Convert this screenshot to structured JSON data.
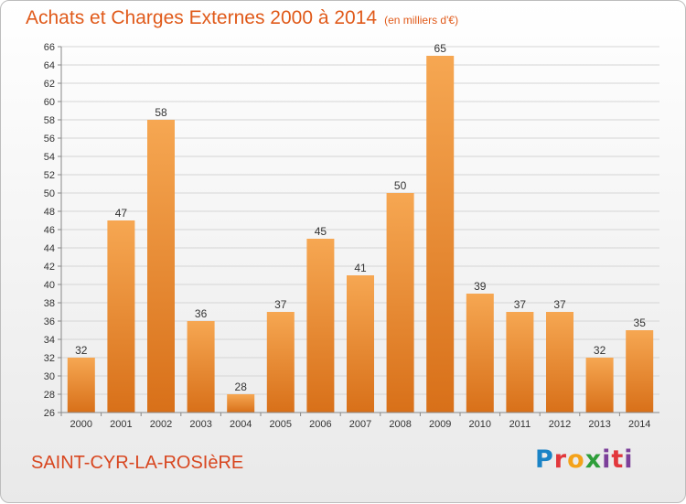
{
  "title": "Achats et Charges Externes 2000 à 2014",
  "subtitle": "(en milliers d'€)",
  "commune": "SAINT-CYR-LA-ROSIèRE",
  "logo": "Proxiti",
  "colors": {
    "bar_light": "#f6a752",
    "bar_dark": "#d87019",
    "title": "#e05a1a",
    "grid": "#d5d5d5"
  },
  "chart_data": {
    "type": "bar",
    "categories": [
      "2000",
      "2001",
      "2002",
      "2003",
      "2004",
      "2005",
      "2006",
      "2007",
      "2008",
      "2009",
      "2010",
      "2011",
      "2012",
      "2013",
      "2014"
    ],
    "values": [
      32,
      47,
      58,
      36,
      28,
      37,
      45,
      41,
      50,
      65,
      39,
      37,
      37,
      32,
      35
    ],
    "ylim": [
      26,
      66
    ],
    "yticks": [
      26,
      28,
      30,
      32,
      34,
      36,
      38,
      40,
      42,
      44,
      46,
      48,
      50,
      52,
      54,
      56,
      58,
      60,
      62,
      64,
      66
    ],
    "grid": true,
    "xlabel": "",
    "ylabel": ""
  }
}
